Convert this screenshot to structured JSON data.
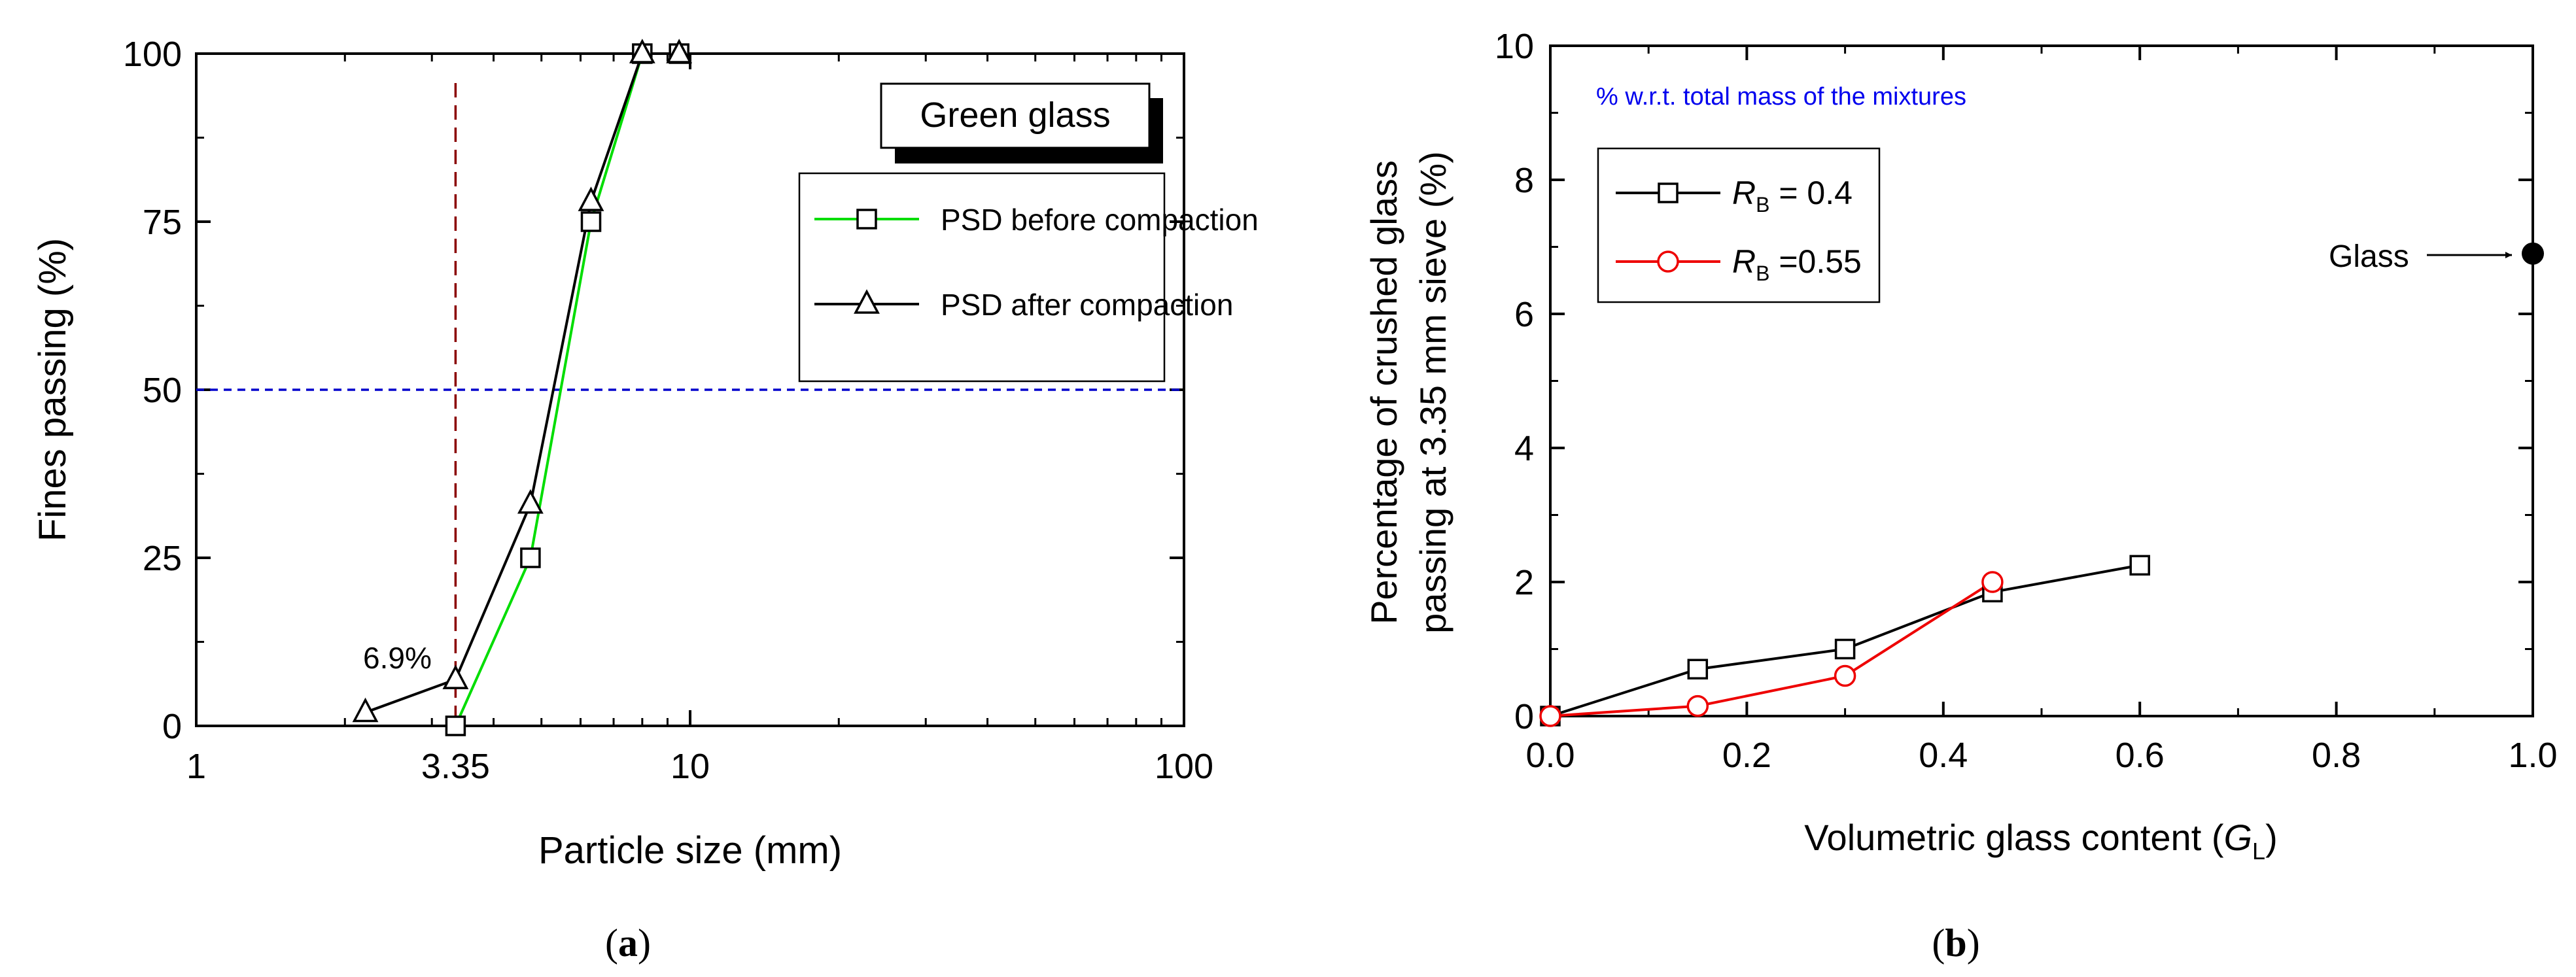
{
  "chart_data": [
    {
      "type": "line",
      "panel_label": "a",
      "title": "",
      "xlabel": "Particle size (mm)",
      "ylabel": "Fines passing (%)",
      "xscale": "log",
      "xlim": [
        1,
        100
      ],
      "ylim": [
        0,
        100
      ],
      "x_ticks": [
        "1",
        "10",
        "100"
      ],
      "y_ticks": [
        "0",
        "25",
        "50",
        "75",
        "100"
      ],
      "grid": false,
      "legend_box_label": "Green glass",
      "legend_position": "top-right",
      "series": [
        {
          "name": "PSD before compaction",
          "color": "#00dd00",
          "marker": "square",
          "x": [
            3.35,
            4.75,
            6.3,
            8.0,
            9.5
          ],
          "y": [
            0,
            25,
            75,
            100,
            100
          ]
        },
        {
          "name": "PSD after compaction",
          "color": "#000000",
          "marker": "triangle",
          "x": [
            2.2,
            3.35,
            4.75,
            6.3,
            8.0,
            9.5
          ],
          "y": [
            2,
            6.9,
            33,
            78,
            100,
            100
          ]
        }
      ],
      "reference_lines": [
        {
          "orientation": "horizontal",
          "value": 50,
          "color": "#0000cc",
          "style": "dashed"
        },
        {
          "orientation": "vertical",
          "value": 3.35,
          "label": "3.35",
          "color": "#8b0000",
          "style": "dashed"
        }
      ],
      "annotations": [
        {
          "text": "6.9%",
          "x": 3.35,
          "y": 6.9
        }
      ]
    },
    {
      "type": "line",
      "panel_label": "b",
      "title": "",
      "xlabel": "Volumetric glass content (G_L)",
      "xlabel_parts": {
        "prefix": "Volumetric glass content (",
        "symbol": "G",
        "subscript": "L",
        "suffix": ")"
      },
      "ylabel_line1": "Percentage of crushed glass",
      "ylabel_line2": "passing at 3.35 mm sieve (%)",
      "xlim": [
        0,
        1
      ],
      "ylim": [
        0,
        10
      ],
      "x_ticks": [
        "0.0",
        "0.2",
        "0.4",
        "0.6",
        "0.8",
        "1.0"
      ],
      "y_ticks": [
        "0",
        "2",
        "4",
        "6",
        "8",
        "10"
      ],
      "grid": false,
      "note": "% w.r.t. total mass of the mixtures",
      "legend_position": "top-left",
      "series": [
        {
          "name": "R_B = 0.4",
          "legend_symbol": "R",
          "legend_subscript": "B",
          "legend_value": " = 0.4",
          "color": "#000000",
          "marker": "square",
          "x": [
            0,
            0.15,
            0.3,
            0.45,
            0.6
          ],
          "y": [
            0,
            0.7,
            1.0,
            1.85,
            2.25
          ]
        },
        {
          "name": "R_B =0.55",
          "legend_symbol": "R",
          "legend_subscript": "B",
          "legend_value": " =0.55",
          "color": "#ee0000",
          "marker": "circle",
          "x": [
            0,
            0.15,
            0.3,
            0.45
          ],
          "y": [
            0,
            0.15,
            0.6,
            2.0
          ]
        }
      ],
      "highlight_point": {
        "label": "Glass",
        "x": 1.0,
        "y": 6.9
      }
    }
  ]
}
